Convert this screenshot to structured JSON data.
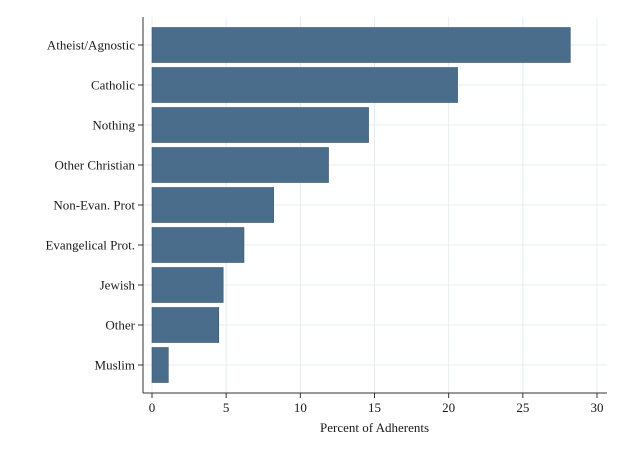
{
  "chart_data": {
    "type": "bar",
    "orientation": "horizontal",
    "categories": [
      "Atheist/Agnostic",
      "Catholic",
      "Nothing",
      "Other Christian",
      "Non-Evan. Prot",
      "Evangelical Prot.",
      "Jewish",
      "Other",
      "Muslim"
    ],
    "values": [
      28.2,
      20.6,
      14.6,
      11.9,
      8.2,
      6.2,
      4.8,
      4.5,
      1.1
    ],
    "xlabel": "Percent of Adherents",
    "ylabel": "",
    "xlim": [
      0,
      30
    ],
    "xticks": [
      0,
      5,
      10,
      15,
      20,
      25,
      30
    ],
    "grid": true,
    "bar_color": "#4a6d8c",
    "grid_color": "#e6edf0"
  }
}
